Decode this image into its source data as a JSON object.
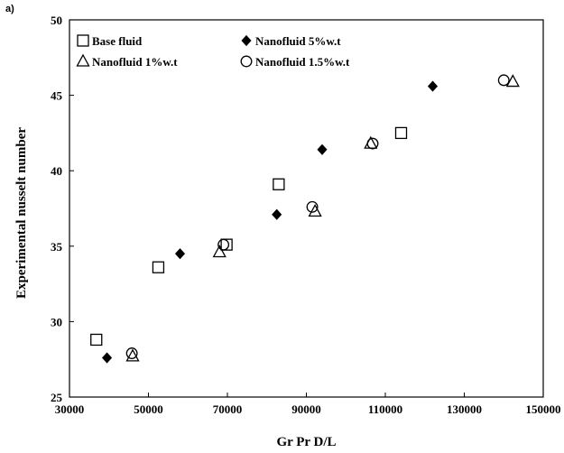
{
  "panel_label": "a)",
  "chart_data": {
    "type": "scatter",
    "title": "",
    "xlabel": "Gr Pr D/L",
    "ylabel": "Experimental nusselt number",
    "xlim": [
      30000,
      150000
    ],
    "ylim": [
      25,
      50
    ],
    "xticks": [
      30000,
      50000,
      70000,
      90000,
      110000,
      130000,
      150000
    ],
    "yticks": [
      25,
      30,
      35,
      40,
      45,
      50
    ],
    "grid": false,
    "legend_position": "top-left",
    "series": [
      {
        "name": "Base fluid",
        "marker": "open-square",
        "points": [
          {
            "x": 36800,
            "y": 28.8
          },
          {
            "x": 52500,
            "y": 33.6
          },
          {
            "x": 69800,
            "y": 35.1
          },
          {
            "x": 83000,
            "y": 39.1
          },
          {
            "x": 114000,
            "y": 42.5
          }
        ]
      },
      {
        "name": "Nanofluid 5%w.t",
        "marker": "filled-diamond",
        "points": [
          {
            "x": 39500,
            "y": 27.6
          },
          {
            "x": 58000,
            "y": 34.5
          },
          {
            "x": 82500,
            "y": 37.1
          },
          {
            "x": 94000,
            "y": 41.4
          },
          {
            "x": 122000,
            "y": 45.6
          }
        ]
      },
      {
        "name": "Nanofluid 1%w.t",
        "marker": "open-triangle",
        "points": [
          {
            "x": 46000,
            "y": 27.7
          },
          {
            "x": 68000,
            "y": 34.6
          },
          {
            "x": 92200,
            "y": 37.3
          },
          {
            "x": 106300,
            "y": 41.8
          },
          {
            "x": 142300,
            "y": 45.9
          }
        ]
      },
      {
        "name": "Nanofluid 1.5%w.t",
        "marker": "open-circle",
        "points": [
          {
            "x": 45800,
            "y": 27.9
          },
          {
            "x": 69000,
            "y": 35.1
          },
          {
            "x": 91500,
            "y": 37.6
          },
          {
            "x": 106800,
            "y": 41.8
          },
          {
            "x": 140000,
            "y": 46.0
          }
        ]
      }
    ]
  }
}
